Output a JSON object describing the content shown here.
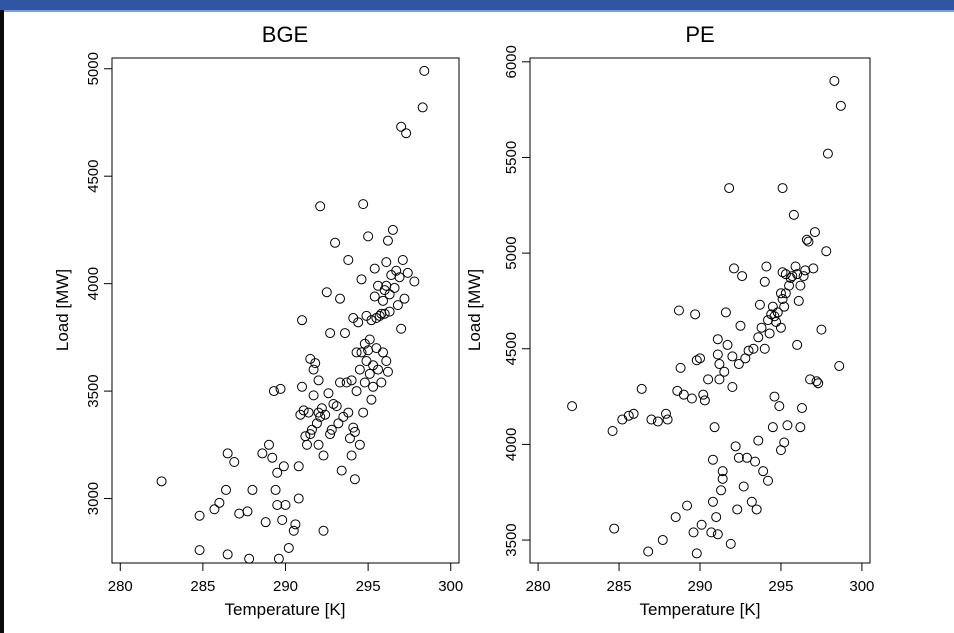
{
  "chart_data": [
    {
      "type": "scatter",
      "title": "BGE",
      "xlabel": "Temperature [K]",
      "ylabel": "Load [MW]",
      "xlim": [
        279.5,
        300.5
      ],
      "ylim": [
        2700,
        5050
      ],
      "xticks": [
        280,
        285,
        290,
        295,
        300
      ],
      "yticks": [
        3000,
        3500,
        4000,
        4500,
        5000
      ],
      "grid": false,
      "points": [
        [
          282.5,
          3080
        ],
        [
          284.8,
          2920
        ],
        [
          284.8,
          2760
        ],
        [
          285.7,
          2950
        ],
        [
          286.0,
          2980
        ],
        [
          286.4,
          3040
        ],
        [
          286.5,
          3210
        ],
        [
          286.5,
          2740
        ],
        [
          286.9,
          3170
        ],
        [
          287.2,
          2930
        ],
        [
          287.7,
          2940
        ],
        [
          287.8,
          2720
        ],
        [
          288.0,
          3040
        ],
        [
          288.6,
          3210
        ],
        [
          288.8,
          2890
        ],
        [
          289.0,
          3250
        ],
        [
          289.2,
          3190
        ],
        [
          289.3,
          3500
        ],
        [
          289.4,
          3040
        ],
        [
          289.5,
          3120
        ],
        [
          289.5,
          2970
        ],
        [
          289.6,
          2720
        ],
        [
          289.7,
          3510
        ],
        [
          289.8,
          2900
        ],
        [
          289.9,
          3150
        ],
        [
          290.0,
          2970
        ],
        [
          290.2,
          2770
        ],
        [
          290.5,
          2850
        ],
        [
          290.6,
          2880
        ],
        [
          290.8,
          3000
        ],
        [
          290.8,
          3150
        ],
        [
          290.9,
          3390
        ],
        [
          291.0,
          3520
        ],
        [
          291.0,
          3830
        ],
        [
          291.1,
          3410
        ],
        [
          291.2,
          3290
        ],
        [
          291.3,
          3250
        ],
        [
          291.4,
          3400
        ],
        [
          291.5,
          3300
        ],
        [
          291.5,
          3650
        ],
        [
          291.6,
          3320
        ],
        [
          291.7,
          3480
        ],
        [
          291.7,
          3600
        ],
        [
          291.8,
          3630
        ],
        [
          291.9,
          3350
        ],
        [
          292.0,
          3250
        ],
        [
          292.0,
          3400
        ],
        [
          292.0,
          3550
        ],
        [
          292.1,
          3380
        ],
        [
          292.1,
          4360
        ],
        [
          292.2,
          3420
        ],
        [
          292.3,
          2850
        ],
        [
          292.3,
          3200
        ],
        [
          292.4,
          3390
        ],
        [
          292.5,
          3960
        ],
        [
          292.6,
          3490
        ],
        [
          292.7,
          3770
        ],
        [
          292.7,
          3300
        ],
        [
          292.8,
          3320
        ],
        [
          292.9,
          3440
        ],
        [
          293.0,
          4190
        ],
        [
          293.1,
          3430
        ],
        [
          293.2,
          3350
        ],
        [
          293.3,
          3930
        ],
        [
          293.3,
          3540
        ],
        [
          293.4,
          3130
        ],
        [
          293.5,
          3380
        ],
        [
          293.6,
          3770
        ],
        [
          293.7,
          3540
        ],
        [
          293.8,
          4110
        ],
        [
          293.8,
          3400
        ],
        [
          293.9,
          3280
        ],
        [
          294.0,
          3550
        ],
        [
          294.0,
          3200
        ],
        [
          294.1,
          3330
        ],
        [
          294.1,
          3840
        ],
        [
          294.2,
          3310
        ],
        [
          294.2,
          3090
        ],
        [
          294.3,
          3680
        ],
        [
          294.3,
          3500
        ],
        [
          294.4,
          3820
        ],
        [
          294.5,
          3250
        ],
        [
          294.5,
          3600
        ],
        [
          294.6,
          4020
        ],
        [
          294.6,
          3680
        ],
        [
          294.7,
          3400
        ],
        [
          294.7,
          4370
        ],
        [
          294.8,
          3720
        ],
        [
          294.8,
          3540
        ],
        [
          294.9,
          3850
        ],
        [
          294.9,
          3640
        ],
        [
          295.0,
          4220
        ],
        [
          295.0,
          3690
        ],
        [
          295.1,
          3740
        ],
        [
          295.1,
          3580
        ],
        [
          295.2,
          3460
        ],
        [
          295.2,
          3830
        ],
        [
          295.3,
          3520
        ],
        [
          295.3,
          3620
        ],
        [
          295.4,
          3940
        ],
        [
          295.4,
          4070
        ],
        [
          295.5,
          3840
        ],
        [
          295.5,
          3700
        ],
        [
          295.6,
          3990
        ],
        [
          295.6,
          3600
        ],
        [
          295.7,
          3850
        ],
        [
          295.8,
          3860
        ],
        [
          295.8,
          3540
        ],
        [
          295.9,
          3920
        ],
        [
          295.9,
          3680
        ],
        [
          296.0,
          3970
        ],
        [
          296.0,
          3860
        ],
        [
          296.1,
          4100
        ],
        [
          296.1,
          3990
        ],
        [
          296.1,
          3640
        ],
        [
          296.2,
          4200
        ],
        [
          296.2,
          3590
        ],
        [
          296.3,
          3950
        ],
        [
          296.3,
          3870
        ],
        [
          296.4,
          4040
        ],
        [
          296.5,
          4250
        ],
        [
          296.6,
          3980
        ],
        [
          296.7,
          4060
        ],
        [
          296.8,
          3900
        ],
        [
          296.9,
          4030
        ],
        [
          297.0,
          3790
        ],
        [
          297.0,
          4730
        ],
        [
          297.1,
          4110
        ],
        [
          297.2,
          3930
        ],
        [
          297.3,
          4700
        ],
        [
          297.4,
          4050
        ],
        [
          297.8,
          4010
        ],
        [
          298.3,
          4820
        ],
        [
          298.4,
          4990
        ]
      ]
    },
    {
      "type": "scatter",
      "title": "PE",
      "xlabel": "Temperature [K]",
      "ylabel": "Load [MW]",
      "xlim": [
        279.5,
        300.5
      ],
      "ylim": [
        3380,
        6020
      ],
      "xticks": [
        280,
        285,
        290,
        295,
        300
      ],
      "yticks": [
        3500,
        4000,
        4500,
        5000,
        5500,
        6000
      ],
      "grid": false,
      "points": [
        [
          282.1,
          4200
        ],
        [
          284.6,
          4070
        ],
        [
          284.7,
          3560
        ],
        [
          285.2,
          4130
        ],
        [
          285.6,
          4150
        ],
        [
          285.9,
          4160
        ],
        [
          286.4,
          4290
        ],
        [
          286.8,
          3440
        ],
        [
          287.0,
          4130
        ],
        [
          287.4,
          4120
        ],
        [
          287.7,
          3500
        ],
        [
          287.9,
          4160
        ],
        [
          288.0,
          4130
        ],
        [
          288.5,
          3620
        ],
        [
          288.6,
          4280
        ],
        [
          288.7,
          4700
        ],
        [
          288.8,
          4400
        ],
        [
          289.0,
          4260
        ],
        [
          289.2,
          3680
        ],
        [
          289.5,
          4240
        ],
        [
          289.6,
          3540
        ],
        [
          289.7,
          4680
        ],
        [
          289.8,
          4440
        ],
        [
          289.8,
          3430
        ],
        [
          290.0,
          4450
        ],
        [
          290.1,
          3580
        ],
        [
          290.2,
          4260
        ],
        [
          290.3,
          4230
        ],
        [
          290.5,
          4340
        ],
        [
          290.7,
          3540
        ],
        [
          290.8,
          3700
        ],
        [
          290.8,
          3920
        ],
        [
          290.9,
          4090
        ],
        [
          291.0,
          3620
        ],
        [
          291.1,
          3530
        ],
        [
          291.1,
          4550
        ],
        [
          291.1,
          4470
        ],
        [
          291.2,
          4420
        ],
        [
          291.2,
          4340
        ],
        [
          291.3,
          3760
        ],
        [
          291.4,
          3860
        ],
        [
          291.4,
          3820
        ],
        [
          291.5,
          4380
        ],
        [
          291.6,
          4690
        ],
        [
          291.7,
          4520
        ],
        [
          291.8,
          5340
        ],
        [
          291.9,
          3480
        ],
        [
          292.0,
          4460
        ],
        [
          292.0,
          4300
        ],
        [
          292.1,
          4920
        ],
        [
          292.2,
          3990
        ],
        [
          292.3,
          3660
        ],
        [
          292.4,
          4420
        ],
        [
          292.4,
          3930
        ],
        [
          292.5,
          4620
        ],
        [
          292.6,
          4880
        ],
        [
          292.7,
          3780
        ],
        [
          292.8,
          4450
        ],
        [
          292.9,
          3930
        ],
        [
          293.0,
          4490
        ],
        [
          293.2,
          3700
        ],
        [
          293.3,
          4500
        ],
        [
          293.4,
          3910
        ],
        [
          293.5,
          3660
        ],
        [
          293.6,
          4560
        ],
        [
          293.6,
          4020
        ],
        [
          293.7,
          4730
        ],
        [
          293.8,
          4610
        ],
        [
          293.9,
          3860
        ],
        [
          294.0,
          4500
        ],
        [
          294.0,
          4850
        ],
        [
          294.1,
          4930
        ],
        [
          294.2,
          4650
        ],
        [
          294.2,
          3810
        ],
        [
          294.3,
          4580
        ],
        [
          294.4,
          4680
        ],
        [
          294.5,
          4720
        ],
        [
          294.5,
          4090
        ],
        [
          294.6,
          4670
        ],
        [
          294.6,
          4250
        ],
        [
          294.7,
          4640
        ],
        [
          294.8,
          4690
        ],
        [
          294.9,
          4200
        ],
        [
          295.0,
          4790
        ],
        [
          295.0,
          4610
        ],
        [
          295.0,
          3970
        ],
        [
          295.1,
          4760
        ],
        [
          295.1,
          4900
        ],
        [
          295.1,
          5340
        ],
        [
          295.2,
          4720
        ],
        [
          295.2,
          4010
        ],
        [
          295.3,
          4890
        ],
        [
          295.3,
          4790
        ],
        [
          295.4,
          4100
        ],
        [
          295.5,
          4830
        ],
        [
          295.6,
          4870
        ],
        [
          295.7,
          4880
        ],
        [
          295.8,
          5200
        ],
        [
          295.9,
          4930
        ],
        [
          296.0,
          4890
        ],
        [
          296.0,
          4520
        ],
        [
          296.1,
          4750
        ],
        [
          296.2,
          4830
        ],
        [
          296.2,
          4090
        ],
        [
          296.3,
          4190
        ],
        [
          296.4,
          4880
        ],
        [
          296.5,
          4910
        ],
        [
          296.6,
          5070
        ],
        [
          296.7,
          5060
        ],
        [
          296.8,
          4340
        ],
        [
          297.0,
          4920
        ],
        [
          297.1,
          5110
        ],
        [
          297.2,
          4330
        ],
        [
          297.3,
          4320
        ],
        [
          297.5,
          4600
        ],
        [
          297.8,
          5010
        ],
        [
          297.9,
          5520
        ],
        [
          298.3,
          5900
        ],
        [
          298.6,
          4410
        ],
        [
          298.7,
          5770
        ]
      ]
    }
  ]
}
